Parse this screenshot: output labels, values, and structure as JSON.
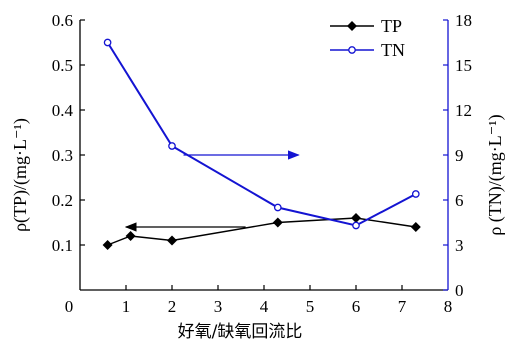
{
  "chart_data": {
    "type": "line",
    "xlabel": "好氧/缺氧回流比",
    "ylabel_left": "ρ(TP)/(mg·L⁻¹)",
    "ylabel_right": "ρ (TN)/(mg·L⁻¹)",
    "x_ticks": [
      "0",
      "1",
      "2",
      "3",
      "4",
      "5",
      "6",
      "7",
      "8"
    ],
    "y_left_ticks": [
      "0",
      "0.1",
      "0.2",
      "0.3",
      "0.4",
      "0.5",
      "0.6"
    ],
    "y_right_ticks": [
      "0",
      "3",
      "6",
      "9",
      "12",
      "15",
      "18"
    ],
    "xlim": [
      0,
      8
    ],
    "ylim_left": [
      0,
      0.6
    ],
    "ylim_right": [
      0,
      18
    ],
    "legend_position": "top-right",
    "series": [
      {
        "name": "TP",
        "axis": "left",
        "color": "#000000",
        "marker": "filled-diamond",
        "x": [
          0.6,
          1.1,
          2.0,
          4.3,
          6.0,
          7.3
        ],
        "y": [
          0.1,
          0.12,
          0.11,
          0.15,
          0.16,
          0.14
        ]
      },
      {
        "name": "TN",
        "axis": "right",
        "color": "#1414d2",
        "marker": "open-circle",
        "x": [
          0.6,
          2.0,
          4.3,
          6.0,
          7.3
        ],
        "y": [
          16.5,
          9.6,
          5.5,
          4.3,
          6.4
        ]
      }
    ],
    "annotations": [
      {
        "type": "arrow",
        "direction": "left",
        "points_to": "left-axis",
        "color": "#000000"
      },
      {
        "type": "arrow",
        "direction": "right",
        "points_to": "right-axis",
        "color": "#1414d2"
      }
    ],
    "grid": false
  }
}
